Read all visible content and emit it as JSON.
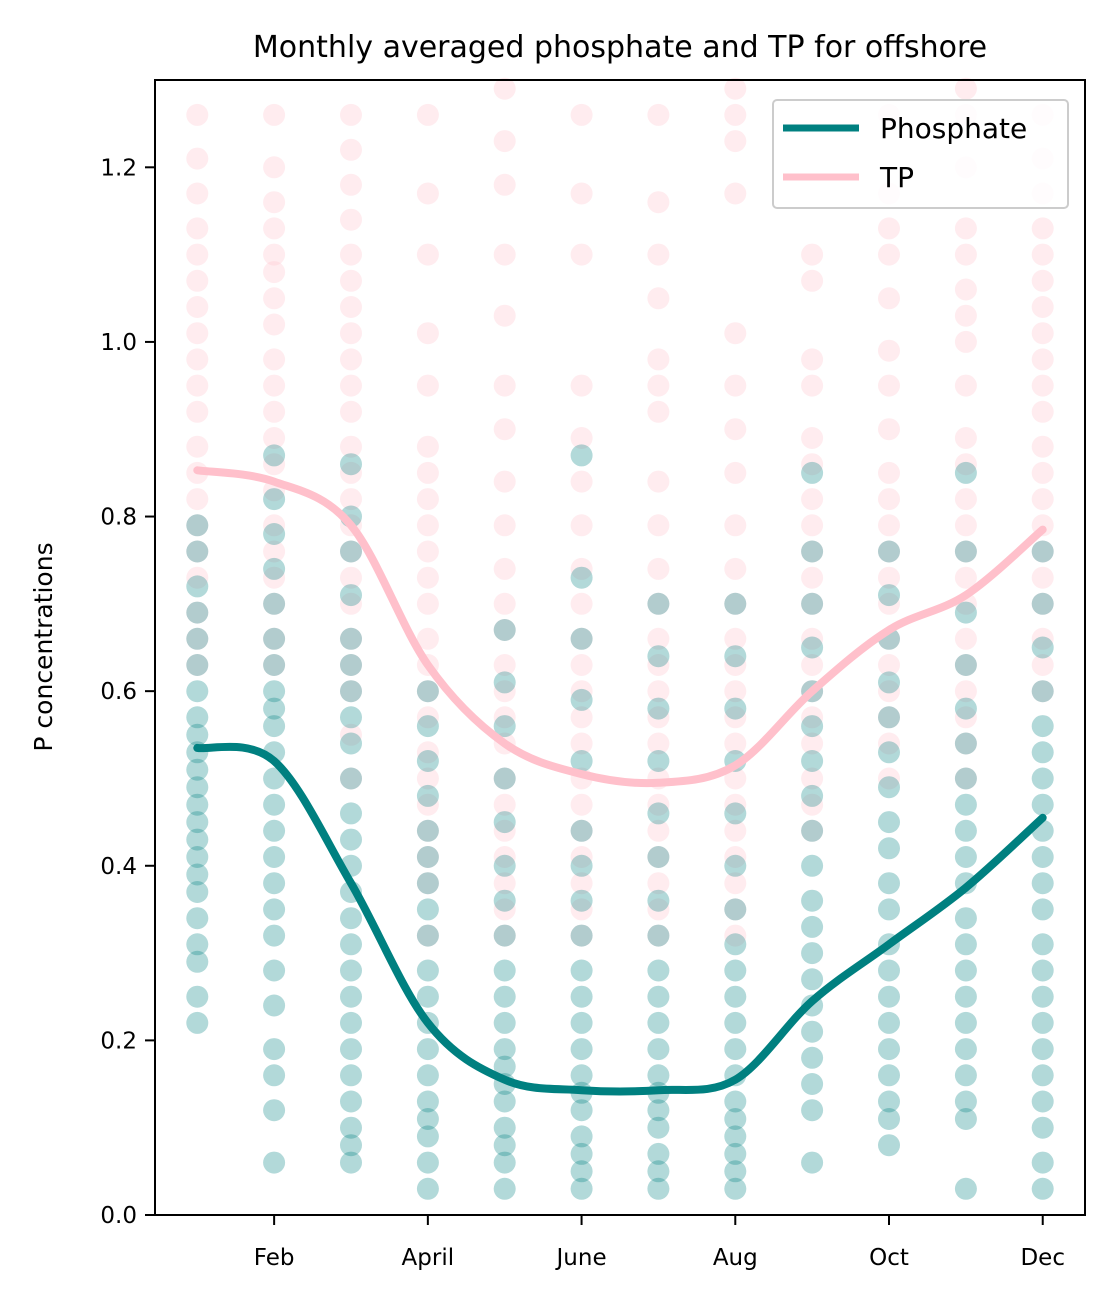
{
  "chart_data": {
    "type": "line",
    "title": "Monthly averaged phosphate and TP for offshore",
    "xlabel": "",
    "ylabel": "P concentrations",
    "xlim": [
      0.45,
      12.55
    ],
    "ylim": [
      0,
      1.3
    ],
    "x_ticks": [
      {
        "value": 2,
        "label": "Feb"
      },
      {
        "value": 4,
        "label": "April"
      },
      {
        "value": 6,
        "label": "June"
      },
      {
        "value": 8,
        "label": "Aug"
      },
      {
        "value": 10,
        "label": "Oct"
      },
      {
        "value": 12,
        "label": "Dec"
      }
    ],
    "y_ticks": [
      0.0,
      0.2,
      0.4,
      0.6,
      0.8,
      1.0,
      1.2
    ],
    "y_tick_labels": [
      "0.0",
      "0.2",
      "0.4",
      "0.6",
      "0.8",
      "1.0",
      "1.2"
    ],
    "legend_position": "top-right",
    "grid": false,
    "x": [
      1,
      2,
      3,
      4,
      5,
      6,
      7,
      8,
      9,
      10,
      11,
      12
    ],
    "series": [
      {
        "name": "Phosphate",
        "color": "#008080",
        "values": [
          0.535,
          0.52,
          0.38,
          0.22,
          0.155,
          0.143,
          0.143,
          0.155,
          0.245,
          0.31,
          0.375,
          0.455
        ],
        "scatter_values": [
          [
            0.22,
            0.25,
            0.29,
            0.31,
            0.34,
            0.37,
            0.39,
            0.41,
            0.43,
            0.45,
            0.47,
            0.49,
            0.51,
            0.53,
            0.55,
            0.57,
            0.6,
            0.63,
            0.66,
            0.69,
            0.72,
            0.76,
            0.79
          ],
          [
            0.06,
            0.12,
            0.16,
            0.19,
            0.24,
            0.28,
            0.32,
            0.35,
            0.38,
            0.41,
            0.44,
            0.47,
            0.5,
            0.53,
            0.56,
            0.58,
            0.6,
            0.63,
            0.66,
            0.7,
            0.74,
            0.78,
            0.82,
            0.87
          ],
          [
            0.06,
            0.08,
            0.1,
            0.13,
            0.16,
            0.19,
            0.22,
            0.25,
            0.28,
            0.31,
            0.34,
            0.37,
            0.4,
            0.43,
            0.46,
            0.5,
            0.54,
            0.57,
            0.6,
            0.63,
            0.66,
            0.71,
            0.76,
            0.8,
            0.86
          ],
          [
            0.03,
            0.06,
            0.09,
            0.11,
            0.13,
            0.16,
            0.19,
            0.22,
            0.25,
            0.28,
            0.32,
            0.35,
            0.38,
            0.41,
            0.44,
            0.48,
            0.52,
            0.56,
            0.6
          ],
          [
            0.03,
            0.06,
            0.08,
            0.1,
            0.13,
            0.15,
            0.17,
            0.19,
            0.22,
            0.25,
            0.28,
            0.32,
            0.36,
            0.4,
            0.45,
            0.5,
            0.56,
            0.61,
            0.67
          ],
          [
            0.03,
            0.05,
            0.07,
            0.09,
            0.12,
            0.14,
            0.16,
            0.19,
            0.22,
            0.25,
            0.28,
            0.32,
            0.36,
            0.4,
            0.44,
            0.52,
            0.59,
            0.66,
            0.73,
            0.87
          ],
          [
            0.03,
            0.05,
            0.07,
            0.1,
            0.12,
            0.14,
            0.16,
            0.19,
            0.22,
            0.25,
            0.28,
            0.32,
            0.36,
            0.41,
            0.46,
            0.52,
            0.58,
            0.64,
            0.7
          ],
          [
            0.03,
            0.05,
            0.07,
            0.09,
            0.11,
            0.13,
            0.16,
            0.19,
            0.22,
            0.25,
            0.28,
            0.31,
            0.35,
            0.4,
            0.46,
            0.52,
            0.58,
            0.64,
            0.7
          ],
          [
            0.06,
            0.12,
            0.15,
            0.18,
            0.21,
            0.24,
            0.27,
            0.3,
            0.33,
            0.36,
            0.4,
            0.44,
            0.48,
            0.52,
            0.56,
            0.6,
            0.65,
            0.7,
            0.76,
            0.85
          ],
          [
            0.08,
            0.11,
            0.13,
            0.16,
            0.19,
            0.22,
            0.25,
            0.28,
            0.31,
            0.35,
            0.38,
            0.42,
            0.45,
            0.49,
            0.53,
            0.57,
            0.61,
            0.66,
            0.71,
            0.76
          ],
          [
            0.03,
            0.11,
            0.13,
            0.16,
            0.19,
            0.22,
            0.25,
            0.28,
            0.31,
            0.34,
            0.38,
            0.41,
            0.44,
            0.47,
            0.5,
            0.54,
            0.58,
            0.63,
            0.69,
            0.76,
            0.85
          ],
          [
            0.03,
            0.06,
            0.1,
            0.13,
            0.16,
            0.19,
            0.22,
            0.25,
            0.28,
            0.31,
            0.35,
            0.38,
            0.41,
            0.44,
            0.47,
            0.5,
            0.53,
            0.56,
            0.6,
            0.65,
            0.7,
            0.76
          ]
        ]
      },
      {
        "name": "TP",
        "color": "#ffc0cb",
        "values": [
          0.853,
          0.84,
          0.79,
          0.63,
          0.54,
          0.505,
          0.495,
          0.515,
          0.6,
          0.67,
          0.71,
          0.785
        ],
        "scatter_values": [
          [
            0.63,
            0.66,
            0.69,
            0.73,
            0.76,
            0.79,
            0.82,
            0.85,
            0.88,
            0.92,
            0.95,
            0.98,
            1.01,
            1.04,
            1.07,
            1.1,
            1.13,
            1.17,
            1.21,
            1.26
          ],
          [
            0.63,
            0.66,
            0.7,
            0.73,
            0.76,
            0.79,
            0.83,
            0.86,
            0.89,
            0.92,
            0.95,
            0.98,
            1.02,
            1.05,
            1.08,
            1.1,
            1.13,
            1.16,
            1.2,
            1.26
          ],
          [
            0.5,
            0.55,
            0.6,
            0.63,
            0.66,
            0.7,
            0.73,
            0.76,
            0.79,
            0.82,
            0.85,
            0.88,
            0.92,
            0.95,
            0.98,
            1.01,
            1.04,
            1.07,
            1.1,
            1.14,
            1.18,
            1.22,
            1.26
          ],
          [
            0.32,
            0.38,
            0.41,
            0.44,
            0.47,
            0.5,
            0.53,
            0.57,
            0.6,
            0.63,
            0.66,
            0.7,
            0.73,
            0.76,
            0.79,
            0.82,
            0.85,
            0.88,
            0.95,
            1.01,
            1.1,
            1.17,
            1.26
          ],
          [
            0.32,
            0.35,
            0.38,
            0.41,
            0.44,
            0.47,
            0.5,
            0.54,
            0.57,
            0.6,
            0.63,
            0.67,
            0.7,
            0.74,
            0.79,
            0.84,
            0.9,
            0.95,
            1.03,
            1.1,
            1.18,
            1.23,
            1.29
          ],
          [
            0.32,
            0.35,
            0.38,
            0.41,
            0.44,
            0.47,
            0.5,
            0.54,
            0.57,
            0.6,
            0.63,
            0.66,
            0.7,
            0.74,
            0.79,
            0.84,
            0.89,
            0.95,
            1.1,
            1.17,
            1.26
          ],
          [
            0.32,
            0.35,
            0.38,
            0.41,
            0.44,
            0.47,
            0.5,
            0.54,
            0.57,
            0.6,
            0.63,
            0.66,
            0.7,
            0.74,
            0.79,
            0.84,
            0.92,
            0.95,
            0.98,
            1.05,
            1.1,
            1.16,
            1.26
          ],
          [
            0.32,
            0.35,
            0.38,
            0.41,
            0.44,
            0.47,
            0.5,
            0.54,
            0.57,
            0.6,
            0.63,
            0.66,
            0.7,
            0.74,
            0.79,
            0.85,
            0.9,
            0.95,
            1.01,
            1.17,
            1.23,
            1.26,
            1.29
          ],
          [
            0.44,
            0.47,
            0.5,
            0.54,
            0.57,
            0.6,
            0.63,
            0.66,
            0.7,
            0.73,
            0.76,
            0.79,
            0.82,
            0.86,
            0.89,
            0.95,
            0.98,
            1.07,
            1.1
          ],
          [
            0.5,
            0.54,
            0.57,
            0.6,
            0.63,
            0.66,
            0.7,
            0.73,
            0.76,
            0.79,
            0.82,
            0.85,
            0.9,
            0.95,
            0.99,
            1.05,
            1.1,
            1.13,
            1.17,
            1.26
          ],
          [
            0.5,
            0.54,
            0.57,
            0.6,
            0.63,
            0.66,
            0.7,
            0.73,
            0.76,
            0.79,
            0.82,
            0.86,
            0.89,
            0.95,
            1.0,
            1.03,
            1.06,
            1.1,
            1.13,
            1.2,
            1.26,
            1.29
          ],
          [
            0.6,
            0.63,
            0.66,
            0.7,
            0.73,
            0.76,
            0.79,
            0.82,
            0.85,
            0.88,
            0.92,
            0.95,
            0.98,
            1.01,
            1.04,
            1.07,
            1.1,
            1.13,
            1.17,
            1.21,
            1.26
          ]
        ]
      }
    ]
  }
}
